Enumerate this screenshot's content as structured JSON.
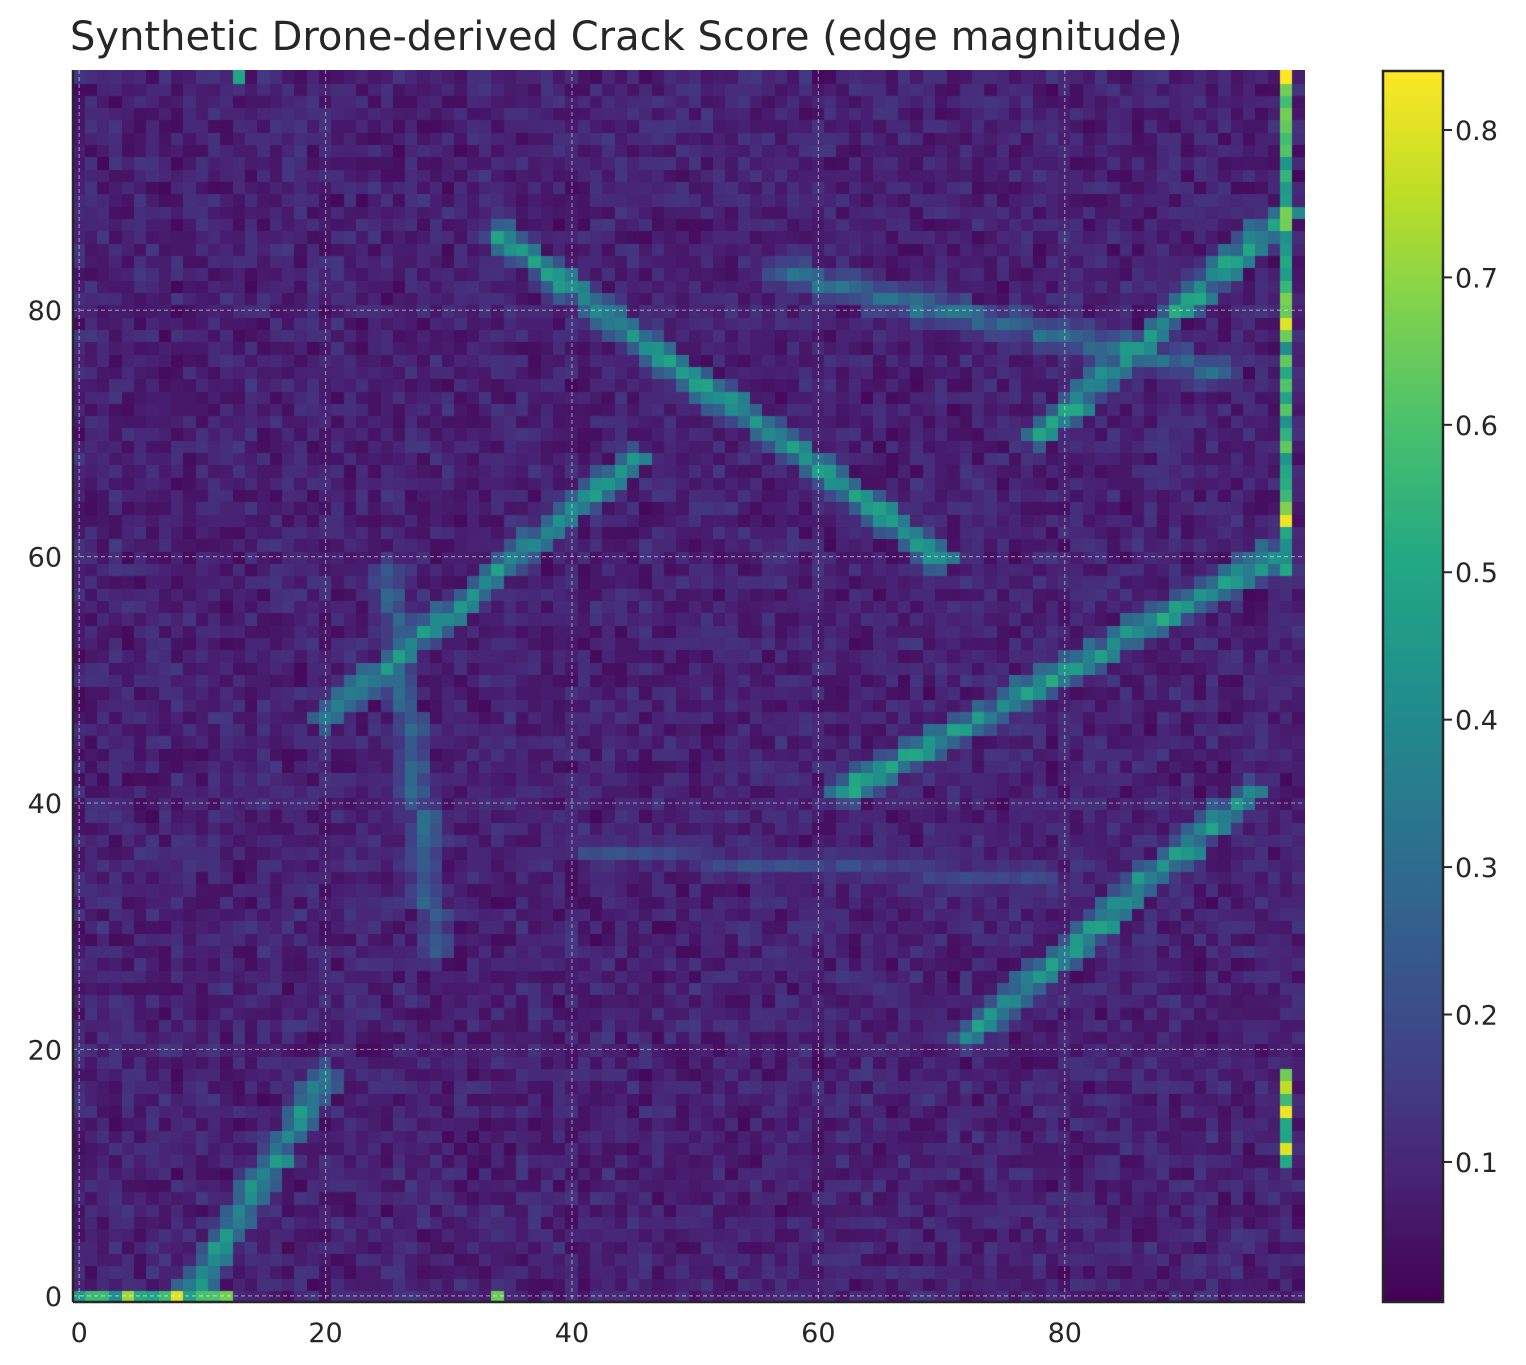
{
  "chart_data": {
    "type": "heatmap",
    "title": "Synthetic Drone-derived Crack Score (edge magnitude)",
    "xlabel": "",
    "ylabel": "",
    "grid_size": [
      100,
      100
    ],
    "xlim": [
      0,
      99
    ],
    "ylim": [
      0,
      99
    ],
    "y_origin": "bottom",
    "grid": true,
    "colormap": "viridis",
    "background_level": 0.07,
    "background_noise": 0.05,
    "x_ticks": [
      0,
      20,
      40,
      60,
      80
    ],
    "y_ticks": [
      0,
      20,
      40,
      60,
      80
    ],
    "colorbar": {
      "range": [
        0.005,
        0.84
      ],
      "ticks": [
        0.1,
        0.2,
        0.3,
        0.4,
        0.5,
        0.6,
        0.7,
        0.8
      ],
      "tick_labels": [
        "0.1",
        "0.2",
        "0.3",
        "0.4",
        "0.5",
        "0.6",
        "0.7",
        "0.8"
      ]
    },
    "cracks": [
      {
        "from": [
          9,
          0
        ],
        "to": [
          20,
          18
        ],
        "level": 0.38
      },
      {
        "from": [
          20,
          47
        ],
        "to": [
          45,
          68
        ],
        "level": 0.4
      },
      {
        "from": [
          25,
          59
        ],
        "to": [
          29,
          28
        ],
        "level": 0.25
      },
      {
        "from": [
          34,
          86
        ],
        "to": [
          70,
          60
        ],
        "level": 0.4
      },
      {
        "from": [
          62,
          41
        ],
        "to": [
          97,
          60
        ],
        "level": 0.42
      },
      {
        "from": [
          72,
          21
        ],
        "to": [
          95,
          41
        ],
        "level": 0.4
      },
      {
        "from": [
          78,
          70
        ],
        "to": [
          98,
          88
        ],
        "level": 0.42
      },
      {
        "from": [
          57,
          83
        ],
        "to": [
          93,
          75
        ],
        "level": 0.28
      },
      {
        "from": [
          41,
          36
        ],
        "to": [
          78,
          34
        ],
        "level": 0.18
      }
    ],
    "edge_bands": [
      {
        "orientation": "row",
        "index": 0,
        "from": 0,
        "to": 12,
        "level": 0.62
      },
      {
        "orientation": "column",
        "index": 98,
        "from": 59,
        "to": 99,
        "level": 0.62
      },
      {
        "orientation": "column",
        "index": 98,
        "from": 11,
        "to": 18,
        "level": 0.7
      }
    ],
    "hotspots": [
      {
        "cell": [
          98,
          99
        ],
        "value": 0.84
      },
      {
        "cell": [
          98,
          79
        ],
        "value": 0.8
      },
      {
        "cell": [
          98,
          63
        ],
        "value": 0.82
      },
      {
        "cell": [
          98,
          15
        ],
        "value": 0.82
      },
      {
        "cell": [
          98,
          12
        ],
        "value": 0.8
      },
      {
        "cell": [
          8,
          0
        ],
        "value": 0.8
      },
      {
        "cell": [
          4,
          0
        ],
        "value": 0.72
      },
      {
        "cell": [
          34,
          0
        ],
        "value": 0.65
      },
      {
        "cell": [
          13,
          99
        ],
        "value": 0.5
      }
    ]
  }
}
